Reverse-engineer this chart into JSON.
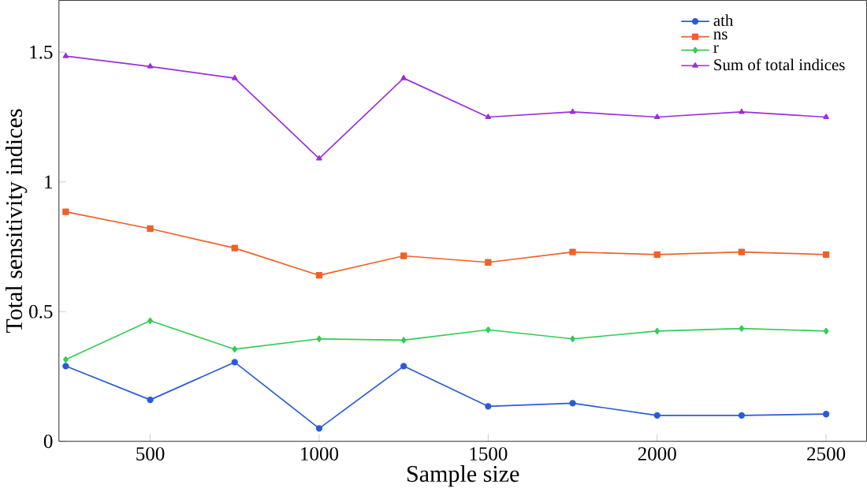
{
  "chart_data": {
    "type": "line",
    "xlabel": "Sample size",
    "ylabel": "Total sensitivity indices",
    "x": [
      250,
      500,
      750,
      1000,
      1250,
      1500,
      1750,
      2000,
      2250,
      2500
    ],
    "series": [
      {
        "name": "ath",
        "color": "#2a5bd7",
        "marker": "circle",
        "values": [
          0.29,
          0.16,
          0.305,
          0.05,
          0.29,
          0.135,
          0.147,
          0.1,
          0.1,
          0.105
        ]
      },
      {
        "name": "ns",
        "color": "#f0602a",
        "marker": "square",
        "values": [
          0.885,
          0.82,
          0.745,
          0.64,
          0.715,
          0.69,
          0.73,
          0.72,
          0.73,
          0.72
        ]
      },
      {
        "name": "r",
        "color": "#33cc55",
        "marker": "diamond",
        "values": [
          0.315,
          0.465,
          0.355,
          0.395,
          0.39,
          0.43,
          0.395,
          0.425,
          0.435,
          0.425
        ]
      },
      {
        "name": "Sum of total indices",
        "color": "#9b30d9",
        "marker": "triangle",
        "values": [
          1.485,
          1.445,
          1.4,
          1.09,
          1.4,
          1.25,
          1.27,
          1.25,
          1.27,
          1.25
        ]
      }
    ],
    "xlim": [
      230,
      2620
    ],
    "ylim": [
      0,
      1.7
    ],
    "xticks": [
      500,
      1000,
      1500,
      2000,
      2500
    ],
    "yticks": [
      0,
      0.5,
      1,
      1.5
    ],
    "grid": false,
    "legend": "top right",
    "line_style": "solid"
  }
}
